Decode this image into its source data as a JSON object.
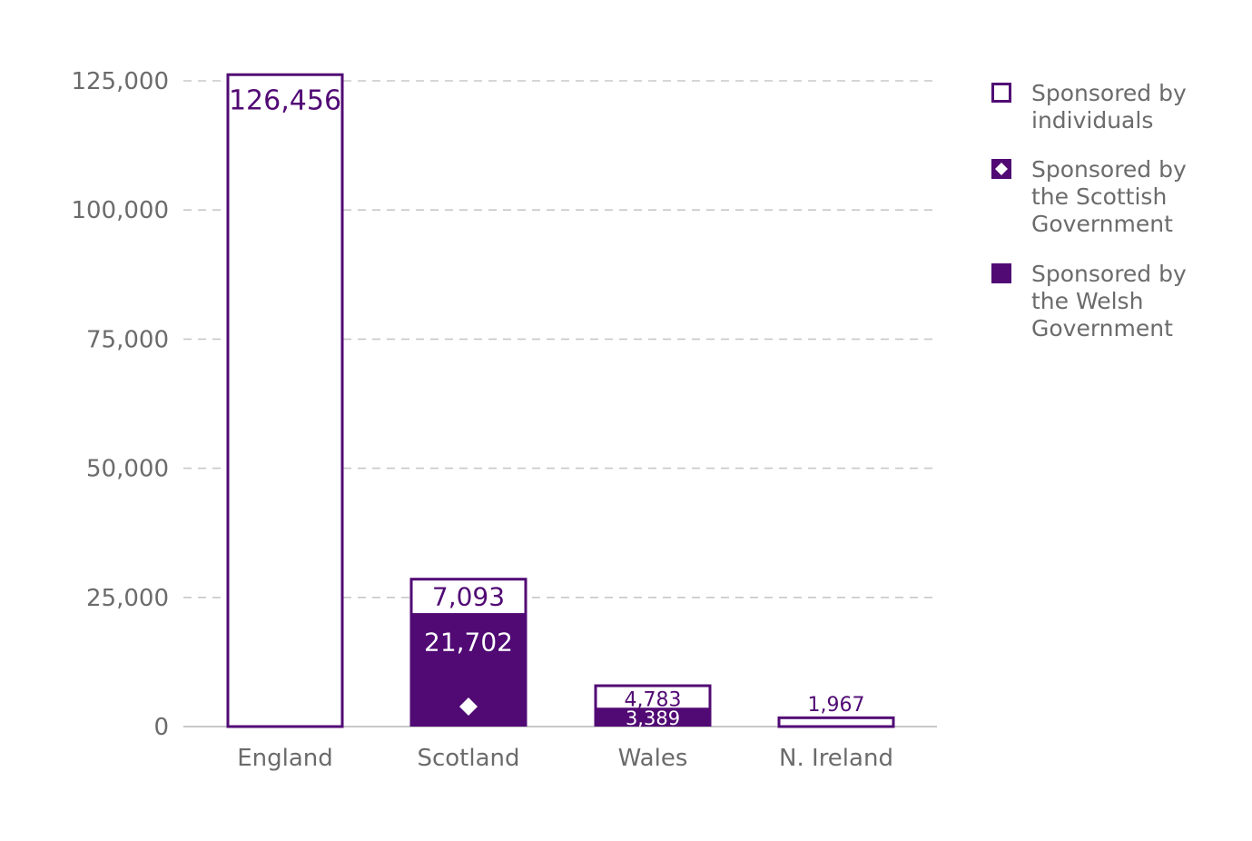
{
  "chart_data": {
    "type": "bar",
    "stacked": true,
    "categories": [
      "England",
      "Scotland",
      "Wales",
      "N. Ireland"
    ],
    "ylim": [
      0,
      125000
    ],
    "yticks": [
      0,
      25000,
      50000,
      75000,
      100000,
      125000
    ],
    "ytick_labels": [
      "0",
      "25,000",
      "50,000",
      "75,000",
      "100,000",
      "125,000"
    ],
    "grid": true,
    "legend_position": "right",
    "series": [
      {
        "key": "welsh",
        "name": "Sponsored by the Welsh Government",
        "legend_lines": [
          "Sponsored by",
          "the Welsh",
          "Government"
        ],
        "style": "filled",
        "values": [
          0,
          0,
          3389,
          0
        ],
        "labels": [
          "",
          "",
          "3,389",
          ""
        ]
      },
      {
        "key": "scottish",
        "name": "Sponsored by the Scottish Government",
        "legend_lines": [
          "Sponsored by",
          "the Scottish",
          "Government"
        ],
        "style": "filled-diamond",
        "values": [
          0,
          21702,
          0,
          0
        ],
        "labels": [
          "",
          "21,702",
          "",
          ""
        ]
      },
      {
        "key": "individuals",
        "name": "Sponsored by individuals",
        "legend_lines": [
          "Sponsored by",
          "individuals"
        ],
        "style": "outline",
        "values": [
          126456,
          7093,
          4783,
          1967
        ],
        "labels": [
          "126,456",
          "7,093",
          "4,783",
          "1,967"
        ]
      }
    ]
  },
  "colors": {
    "purple": "#510a74",
    "grid": "#c8c8c8",
    "axis": "#c8c8c8",
    "text": "#6b6b6b"
  },
  "legend_order": [
    "individuals",
    "scottish",
    "welsh"
  ]
}
